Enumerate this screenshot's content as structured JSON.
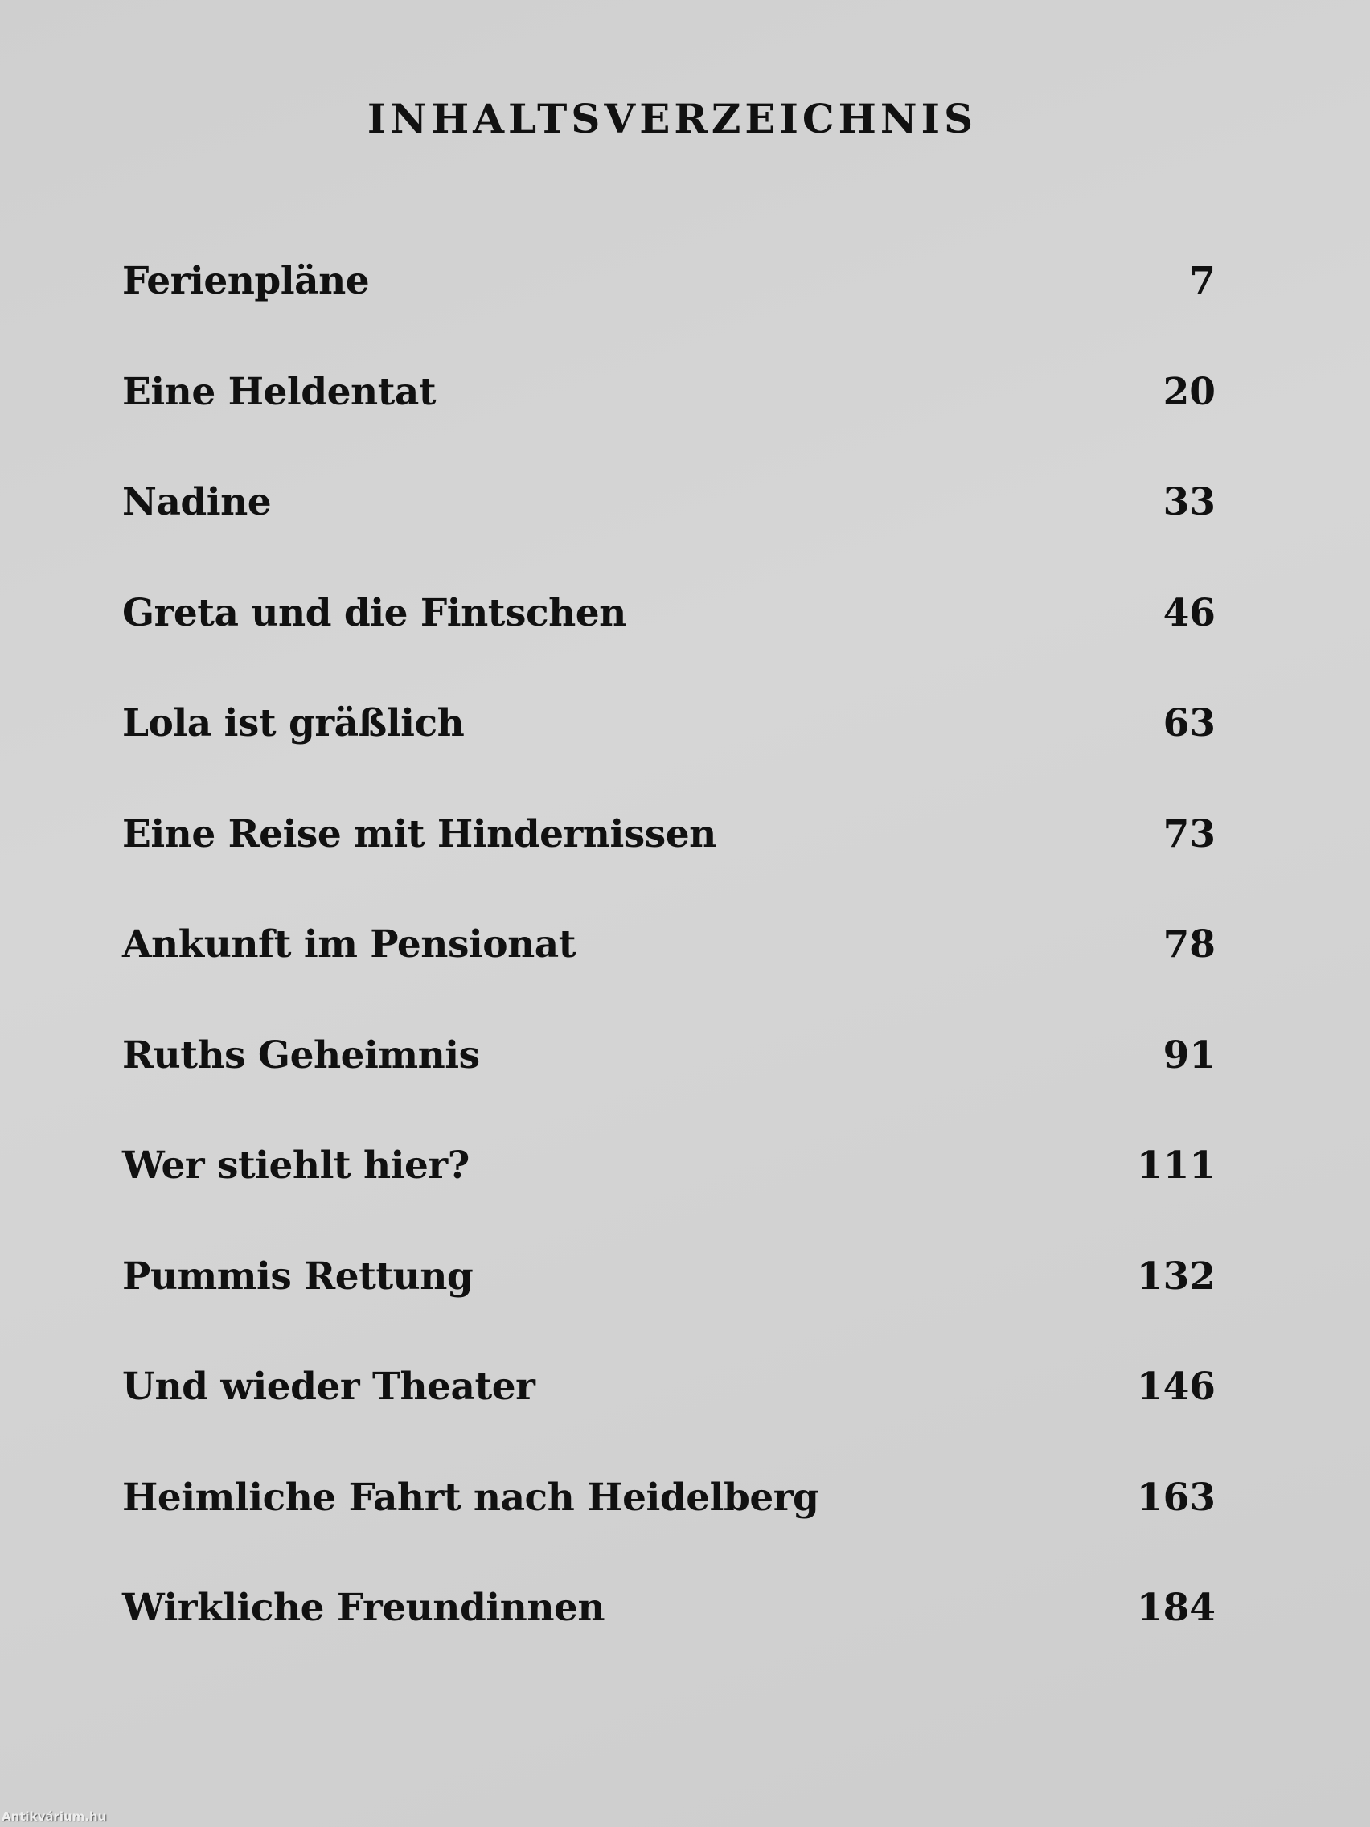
{
  "title": "INHALTSVERZEICHNIS",
  "entries": [
    {
      "title": "Ferienpläne",
      "page": "7"
    },
    {
      "title": "Eine Heldentat",
      "page": "20"
    },
    {
      "title": "Nadine",
      "page": "33"
    },
    {
      "title": "Greta und die Fintschen",
      "page": "46"
    },
    {
      "title": "Lola ist gräßlich",
      "page": "63"
    },
    {
      "title": "Eine Reise mit Hindernissen",
      "page": "73"
    },
    {
      "title": "Ankunft im Pensionat",
      "page": "78"
    },
    {
      "title": "Ruths Geheimnis",
      "page": "91"
    },
    {
      "title": "Wer stiehlt hier?",
      "page": "111"
    },
    {
      "title": "Pummis Rettung",
      "page": "132"
    },
    {
      "title": "Und wieder Theater",
      "page": "146"
    },
    {
      "title": "Heimliche Fahrt nach Heidelberg",
      "page": "163"
    },
    {
      "title": "Wirkliche Freundinnen",
      "page": "184"
    }
  ],
  "watermark": "Antikvárium.hu"
}
